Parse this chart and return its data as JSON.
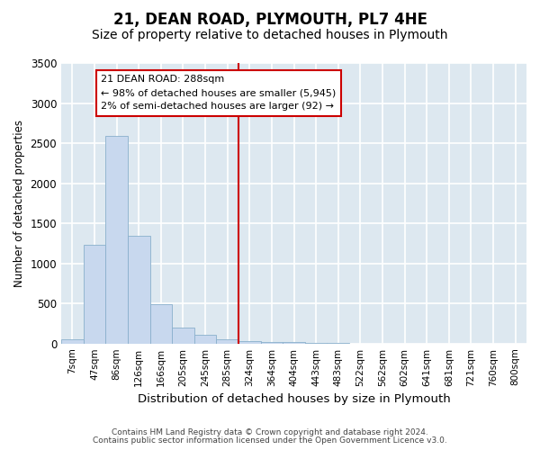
{
  "title": "21, DEAN ROAD, PLYMOUTH, PL7 4HE",
  "subtitle": "Size of property relative to detached houses in Plymouth",
  "xlabel": "Distribution of detached houses by size in Plymouth",
  "ylabel": "Number of detached properties",
  "bar_color": "#c8d8ee",
  "bar_edge_color": "#8ab0cc",
  "categories": [
    "7sqm",
    "47sqm",
    "86sqm",
    "126sqm",
    "166sqm",
    "205sqm",
    "245sqm",
    "285sqm",
    "324sqm",
    "364sqm",
    "404sqm",
    "443sqm",
    "483sqm",
    "522sqm",
    "562sqm",
    "602sqm",
    "641sqm",
    "681sqm",
    "721sqm",
    "760sqm",
    "800sqm"
  ],
  "values": [
    50,
    1230,
    2590,
    1340,
    490,
    195,
    105,
    50,
    35,
    20,
    15,
    8,
    6,
    0,
    0,
    0,
    0,
    0,
    0,
    0,
    0
  ],
  "ylim": [
    0,
    3500
  ],
  "yticks": [
    0,
    500,
    1000,
    1500,
    2000,
    2500,
    3000,
    3500
  ],
  "property_line_x": 7.5,
  "annotation_text": "21 DEAN ROAD: 288sqm\n← 98% of detached houses are smaller (5,945)\n2% of semi-detached houses are larger (92) →",
  "annotation_box_color": "#ffffff",
  "annotation_box_edge": "#cc0000",
  "vline_color": "#cc0000",
  "footer_line1": "Contains HM Land Registry data © Crown copyright and database right 2024.",
  "footer_line2": "Contains public sector information licensed under the Open Government Licence v3.0.",
  "fig_bg_color": "#ffffff",
  "plot_bg_color": "#dde8f0",
  "grid_color": "#ffffff",
  "title_fontsize": 12,
  "subtitle_fontsize": 10
}
